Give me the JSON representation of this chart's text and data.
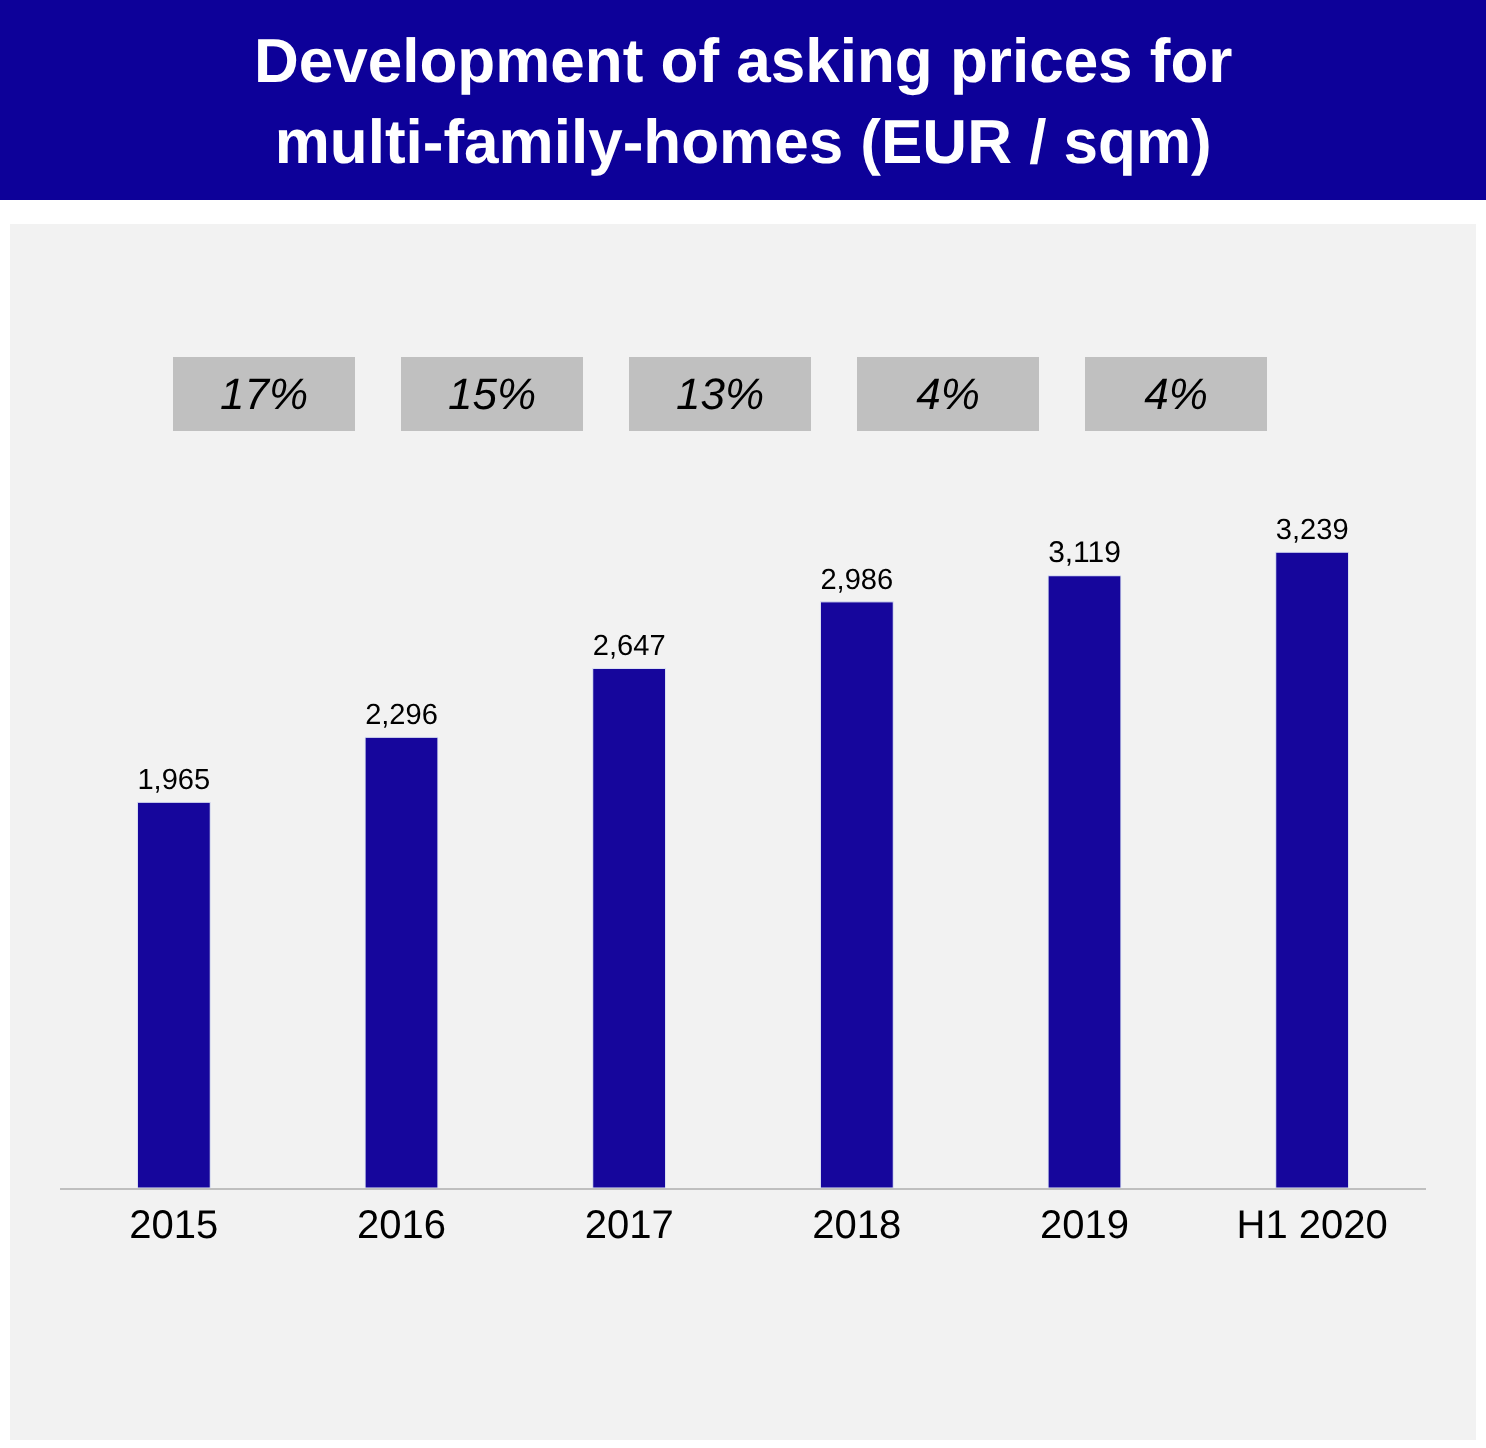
{
  "chart_data": {
    "type": "bar",
    "title": "Development of asking prices for\nmulti-family-homes (EUR / sqm)",
    "categories": [
      "2015",
      "2016",
      "2017",
      "2018",
      "2019",
      "H1 2020"
    ],
    "values": [
      1965,
      2296,
      2647,
      2986,
      3119,
      3239
    ],
    "color": "#16069c",
    "value_labels": [
      "1,965",
      "2,296",
      "2,647",
      "2,986",
      "3,119",
      "3,239"
    ],
    "annotations": [
      "17%",
      "15%",
      "13%",
      "4%",
      "4%"
    ],
    "grid": false,
    "legend": false
  }
}
